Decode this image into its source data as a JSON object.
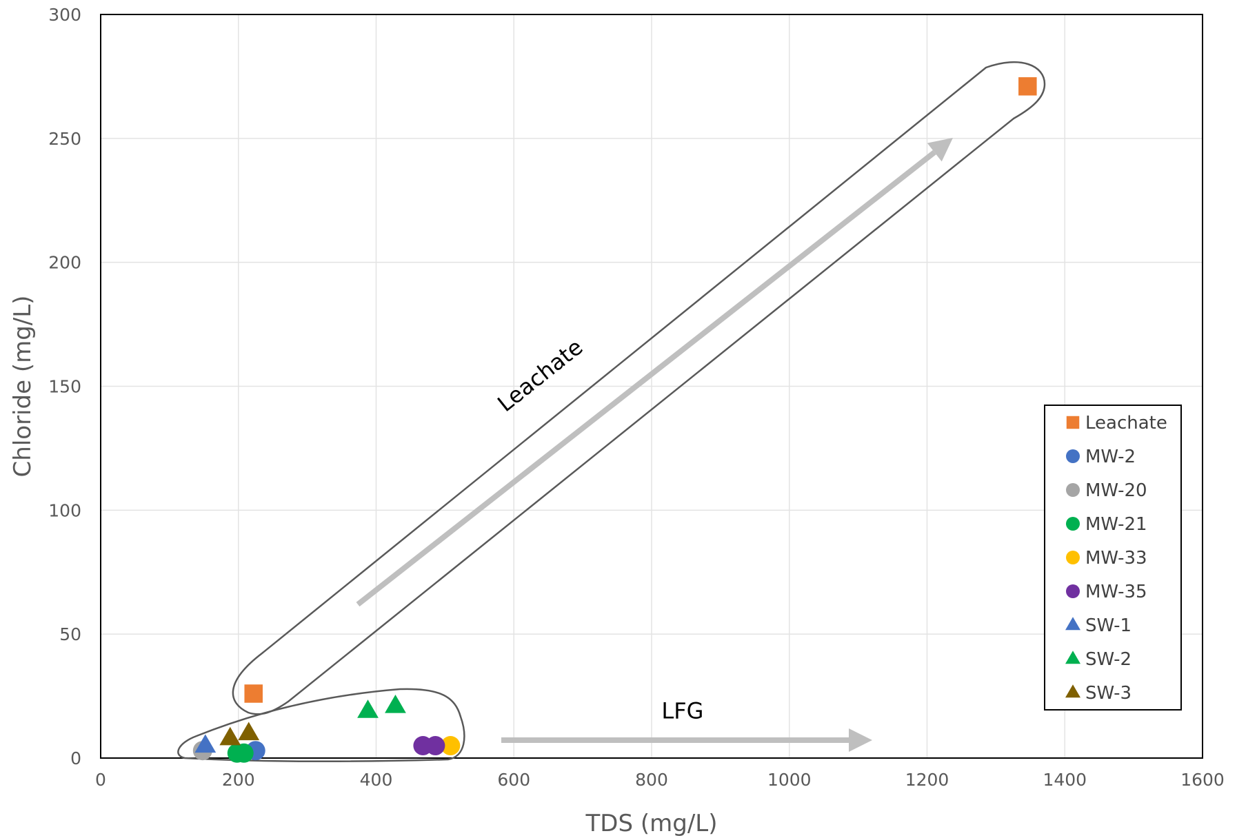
{
  "chart_data": {
    "type": "scatter",
    "title": "",
    "xlabel": "TDS (mg/L)",
    "ylabel": "Chloride (mg/L)",
    "xlim": [
      0,
      1600
    ],
    "ylim": [
      0,
      300
    ],
    "xticks": [
      "0",
      "200",
      "400",
      "600",
      "800",
      "1000",
      "1200",
      "1400",
      "1600"
    ],
    "yticks": [
      "0",
      "50",
      "100",
      "150",
      "200",
      "250",
      "300"
    ],
    "grid": true,
    "legend_position": "right",
    "series": [
      {
        "name": "Leachate",
        "marker": "square",
        "color": "#ED7D31",
        "points": [
          [
            222,
            26
          ],
          [
            1346,
            271
          ]
        ]
      },
      {
        "name": "MW-2",
        "marker": "circle",
        "color": "#4472C4",
        "points": [
          [
            225,
            3
          ]
        ]
      },
      {
        "name": "MW-20",
        "marker": "circle",
        "color": "#A5A5A5",
        "points": [
          [
            148,
            3
          ]
        ]
      },
      {
        "name": "MW-21",
        "marker": "circle",
        "color": "#00B050",
        "points": [
          [
            198,
            2
          ],
          [
            208,
            2
          ]
        ]
      },
      {
        "name": "MW-33",
        "marker": "circle",
        "color": "#FFC000",
        "points": [
          [
            508,
            5
          ]
        ]
      },
      {
        "name": "MW-35",
        "marker": "circle",
        "color": "#7030A0",
        "points": [
          [
            468,
            5
          ],
          [
            486,
            5
          ]
        ]
      },
      {
        "name": "SW-1",
        "marker": "triangle",
        "color": "#4472C4",
        "points": [
          [
            152,
            5
          ]
        ]
      },
      {
        "name": "SW-2",
        "marker": "triangle",
        "color": "#00B050",
        "points": [
          [
            388,
            19
          ],
          [
            428,
            21
          ]
        ]
      },
      {
        "name": "SW-3",
        "marker": "triangle",
        "color": "#7F6000",
        "points": [
          [
            188,
            8
          ],
          [
            215,
            10
          ]
        ]
      }
    ],
    "annotations": [
      {
        "text": "Leachate",
        "x": 645,
        "y": 152
      },
      {
        "text": "LFG",
        "x": 845,
        "y": 16
      }
    ]
  }
}
